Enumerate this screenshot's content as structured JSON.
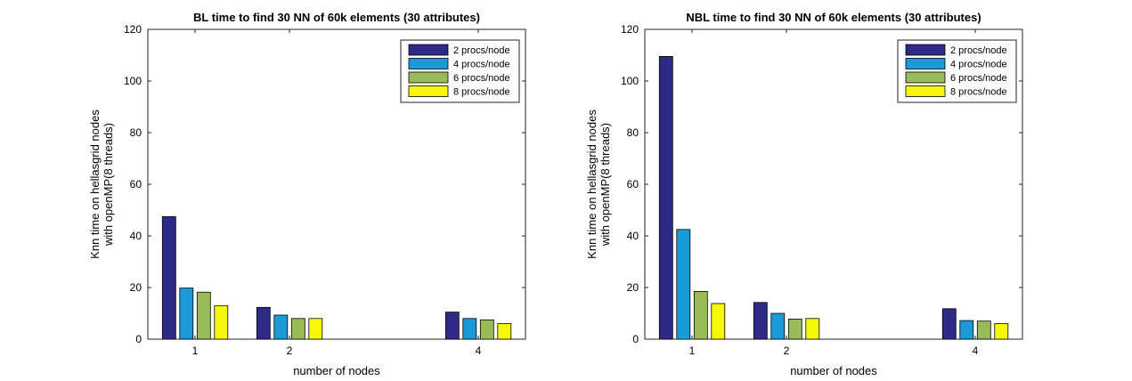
{
  "chart_data": [
    {
      "type": "bar",
      "title": "BL time to find 30 NN of 60k elements (30 attributes)",
      "xlabel": "number of nodes",
      "ylabel": [
        "Knn time on hellasgrid nodes",
        "with openMP(8 threads)"
      ],
      "x": [
        1,
        2,
        4
      ],
      "xticks": [
        "1",
        "2",
        "4"
      ],
      "xlim": [
        0.5,
        4.5
      ],
      "ylim": [
        0,
        120
      ],
      "yticks": [
        "0",
        "20",
        "40",
        "60",
        "80",
        "100",
        "120"
      ],
      "grid": false,
      "legend_position": "top-right",
      "series": [
        {
          "name": "2 procs/node",
          "color": "#2e2a85",
          "values": [
            47.5,
            12.3,
            10.5
          ]
        },
        {
          "name": "4 procs/node",
          "color": "#1a9bd7",
          "values": [
            19.8,
            9.3,
            8.0
          ]
        },
        {
          "name": "6 procs/node",
          "color": "#9bbb59",
          "values": [
            18.2,
            8.0,
            7.5
          ]
        },
        {
          "name": "8 procs/node",
          "color": "#f7f70a",
          "values": [
            13.0,
            8.0,
            6.0
          ]
        }
      ]
    },
    {
      "type": "bar",
      "title": "NBL time to find 30 NN of 60k elements (30 attributes)",
      "xlabel": "number of nodes",
      "ylabel": [
        "Knn time on hellasgrid nodes",
        "with openMP(8 threads)"
      ],
      "x": [
        1,
        2,
        4
      ],
      "xticks": [
        "1",
        "2",
        "4"
      ],
      "xlim": [
        0.5,
        4.5
      ],
      "ylim": [
        0,
        120
      ],
      "yticks": [
        "0",
        "20",
        "40",
        "60",
        "80",
        "100",
        "120"
      ],
      "grid": false,
      "legend_position": "top-right",
      "series": [
        {
          "name": "2 procs/node",
          "color": "#2e2a85",
          "values": [
            109.5,
            14.2,
            11.8
          ]
        },
        {
          "name": "4 procs/node",
          "color": "#1a9bd7",
          "values": [
            42.5,
            10.0,
            7.2
          ]
        },
        {
          "name": "6 procs/node",
          "color": "#9bbb59",
          "values": [
            18.5,
            7.8,
            7.0
          ]
        },
        {
          "name": "8 procs/node",
          "color": "#f7f70a",
          "values": [
            13.8,
            8.0,
            6.0
          ]
        }
      ]
    }
  ]
}
